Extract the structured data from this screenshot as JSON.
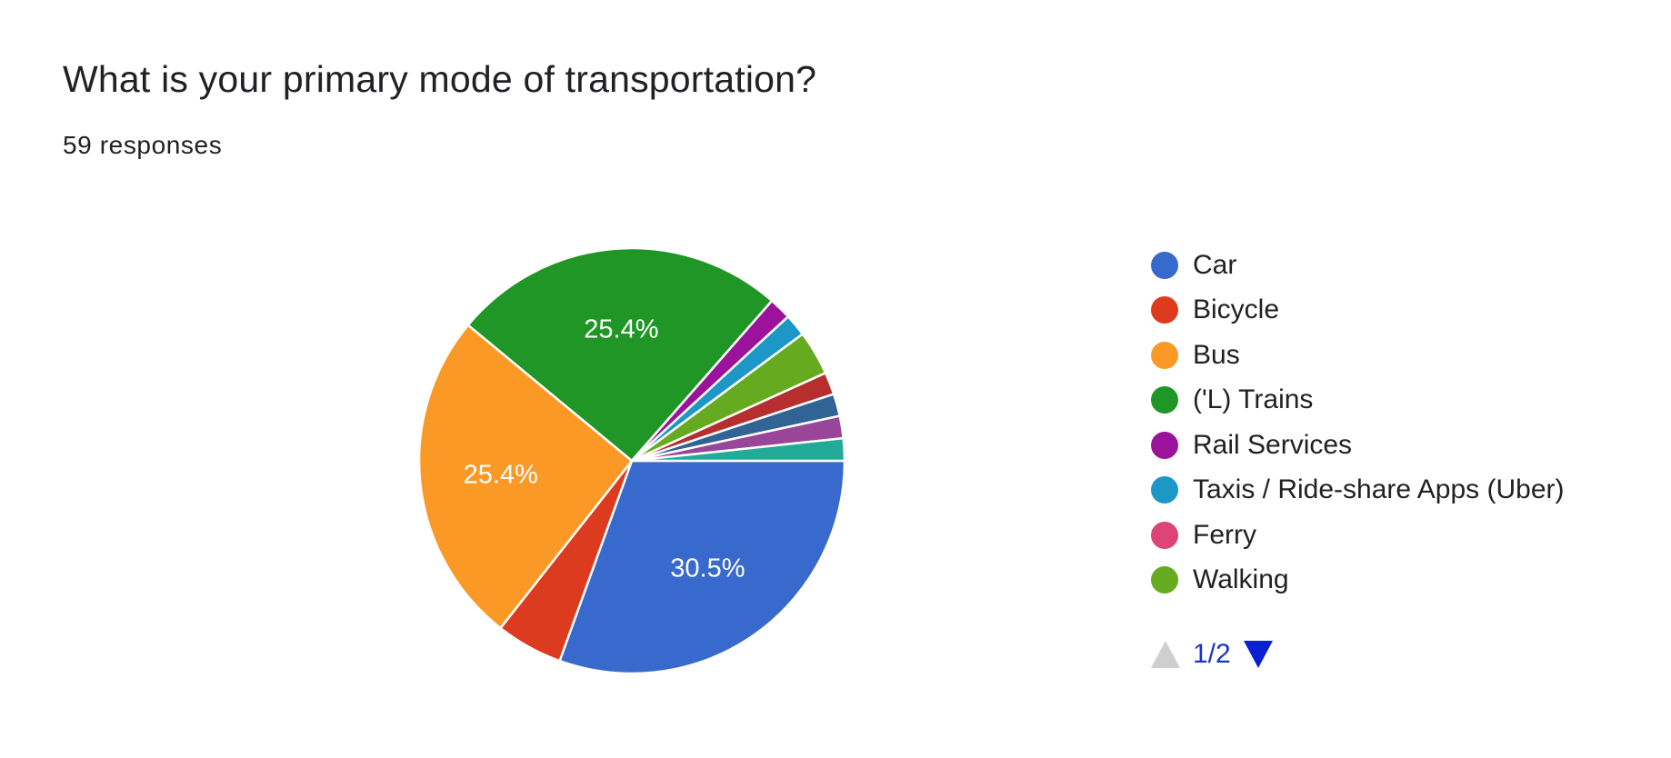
{
  "question": {
    "title": "What is your primary mode of transportation?",
    "responses": "59 responses"
  },
  "chart_data": {
    "type": "pie",
    "total_responses": 59,
    "slices": [
      {
        "label": "Car",
        "count": 18,
        "percent_label": "30.5%",
        "color": "#3869cc"
      },
      {
        "label": "Bicycle",
        "count": 3,
        "percent_label": "",
        "color": "#dc3b1f"
      },
      {
        "label": "Bus",
        "count": 15,
        "percent_label": "25.4%",
        "color": "#fb9927"
      },
      {
        "label": "('L) Trains",
        "count": 15,
        "percent_label": "25.4%",
        "color": "#1f9625"
      },
      {
        "label": "Rail Services",
        "count": 1,
        "percent_label": "",
        "color": "#9a139a"
      },
      {
        "label": "Taxis / Ride-share Apps (Uber)",
        "count": 1,
        "percent_label": "",
        "color": "#1d98c6"
      },
      {
        "label": "Ferry",
        "count": 0,
        "percent_label": "",
        "color": "#dd4477"
      },
      {
        "label": "Walking",
        "count": 2,
        "percent_label": "",
        "color": "#66aa1f"
      },
      {
        "label": "",
        "count": 1,
        "percent_label": "",
        "color": "#b72e2e"
      },
      {
        "label": "",
        "count": 1,
        "percent_label": "",
        "color": "#316395"
      },
      {
        "label": "",
        "count": 1,
        "percent_label": "",
        "color": "#994599"
      },
      {
        "label": "",
        "count": 1,
        "percent_label": "",
        "color": "#23ab99"
      }
    ],
    "legend": [
      {
        "label": "Car",
        "color": "#3869cc"
      },
      {
        "label": "Bicycle",
        "color": "#dc3b1f"
      },
      {
        "label": "Bus",
        "color": "#fb9927"
      },
      {
        "label": "('L) Trains",
        "color": "#1f9625"
      },
      {
        "label": "Rail Services",
        "color": "#9a139a"
      },
      {
        "label": "Taxis / Ride-share Apps (Uber)",
        "color": "#1d98c6"
      },
      {
        "label": "Ferry",
        "color": "#dd4477"
      },
      {
        "label": "Walking",
        "color": "#66aa1f"
      }
    ],
    "legend_placement": "right",
    "start_angle_deg": 90,
    "direction": "clockwise"
  },
  "pager": {
    "text": "1/2",
    "prev_icon": "triangle-up-icon",
    "next_icon": "triangle-down-icon"
  }
}
